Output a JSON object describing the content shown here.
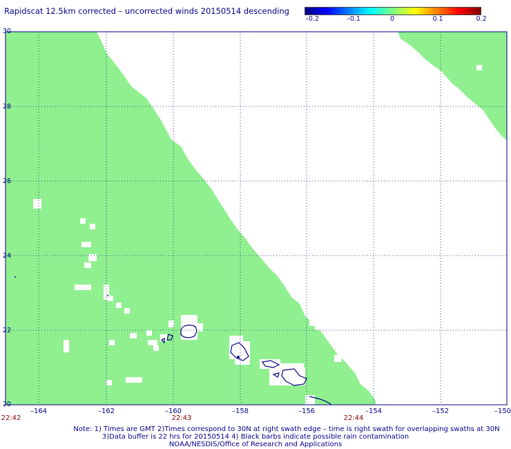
{
  "title": "Rapidscat 12.5km corrected – uncorrected winds 20150514 descending",
  "colorbar": {
    "labels": [
      "–0.2",
      "–0.1",
      "0",
      "0.1",
      "0.2"
    ],
    "values": [
      -0.2,
      -0.1,
      0,
      0.1,
      0.2
    ]
  },
  "map": {
    "lon_range": [
      -165,
      -150
    ],
    "lat_range": [
      20,
      30
    ],
    "x_ticks": [
      "–164",
      "–162",
      "–160",
      "–158",
      "–156",
      "–154",
      "–152",
      "–150"
    ],
    "y_ticks": [
      "30",
      "28",
      "26",
      "24",
      "22",
      "20"
    ],
    "times": [
      "22:42",
      "22:43",
      "22:44"
    ],
    "swath_color": "#90f090",
    "coast_color": "#000080",
    "grid": "dotted"
  },
  "notes": [
    "Note: 1) Times are GMT 2)Times correspond to 30N at right swath edge – time is right swath for overlapping swaths at 30N",
    "3)Data buffer is 22 hrs for 20150514 4) Black barbs indicate possible rain contamination",
    "NOAA/NESDIS/Office of Research and Applications"
  ]
}
